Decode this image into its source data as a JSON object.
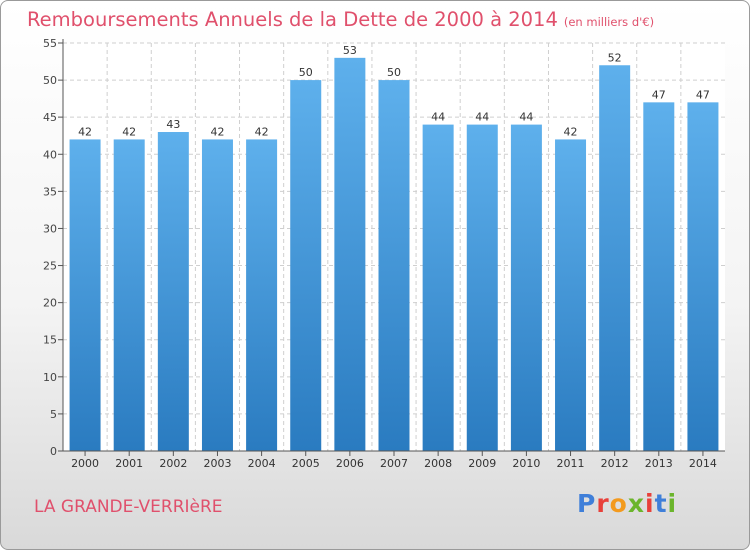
{
  "title": "Remboursements Annuels de la Dette de 2000 à 2014",
  "subtitle": "(en milliers d'€)",
  "commune": "LA GRANDE-VERRIèRE",
  "logo": {
    "text": "Proxiti",
    "letter_colors": [
      "#3f7fd9",
      "#e8403a",
      "#f39a1e",
      "#6bb52c",
      "#e8403a",
      "#3f7fd9",
      "#6bb52c"
    ]
  },
  "colors": {
    "title": "#e0506c",
    "bar_top": "#5eb0ec",
    "bar_bottom": "#2a7bc0",
    "grid": "#cfcfcf"
  },
  "chart_data": {
    "type": "bar",
    "categories": [
      "2000",
      "2001",
      "2002",
      "2003",
      "2004",
      "2005",
      "2006",
      "2007",
      "2008",
      "2009",
      "2010",
      "2011",
      "2012",
      "2013",
      "2014"
    ],
    "values": [
      42,
      42,
      43,
      42,
      42,
      50,
      53,
      50,
      44,
      44,
      44,
      42,
      52,
      47,
      47
    ],
    "data_labels": [
      "42",
      "42",
      "43",
      "42",
      "42",
      "50",
      "53",
      "50",
      "44",
      "44",
      "44",
      "42",
      "52",
      "47",
      "47"
    ],
    "title": "Remboursements Annuels de la Dette de 2000 à 2014",
    "xlabel": "",
    "ylabel": "",
    "ylim": [
      0,
      55
    ],
    "yticks": [
      0,
      5,
      10,
      15,
      20,
      25,
      30,
      35,
      40,
      45,
      50,
      55
    ],
    "grid": true,
    "legend": "none"
  }
}
